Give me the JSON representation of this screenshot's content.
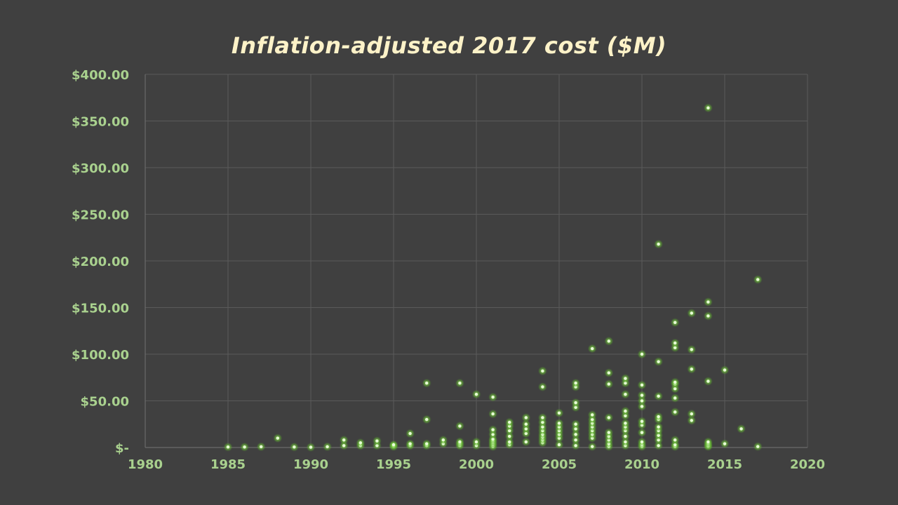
{
  "chart_data": {
    "type": "scatter",
    "title": "Inflation-adjusted 2017 cost ($M)",
    "xlabel": "",
    "ylabel": "",
    "xlim": [
      1980,
      2020
    ],
    "ylim": [
      0,
      400
    ],
    "x_ticks": [
      "1980",
      "1985",
      "1990",
      "1995",
      "2000",
      "2005",
      "2010",
      "2015",
      "2020"
    ],
    "y_ticks": [
      "$-",
      "$50.00",
      "$100.00",
      "$150.00",
      "$200.00",
      "$250.00",
      "$300.00",
      "$350.00",
      "$400.00"
    ],
    "grid": true,
    "marker_color": "#9be05a",
    "points": [
      [
        1985,
        0.5
      ],
      [
        1986,
        0.5
      ],
      [
        1987,
        0.8
      ],
      [
        1988,
        10
      ],
      [
        1989,
        0.5
      ],
      [
        1990,
        0.3
      ],
      [
        1991,
        0.8
      ],
      [
        1992,
        2
      ],
      [
        1992,
        8
      ],
      [
        1993,
        2
      ],
      [
        1993,
        5
      ],
      [
        1994,
        2
      ],
      [
        1994,
        7
      ],
      [
        1995,
        1
      ],
      [
        1995,
        2
      ],
      [
        1995,
        3
      ],
      [
        1996,
        2
      ],
      [
        1996,
        4
      ],
      [
        1996,
        15
      ],
      [
        1997,
        2
      ],
      [
        1997,
        4
      ],
      [
        1997,
        30
      ],
      [
        1997,
        69
      ],
      [
        1998,
        4
      ],
      [
        1998,
        8
      ],
      [
        1999,
        2
      ],
      [
        1999,
        4
      ],
      [
        1999,
        6
      ],
      [
        1999,
        23
      ],
      [
        1999,
        69
      ],
      [
        2000,
        2
      ],
      [
        2000,
        6
      ],
      [
        2000,
        57
      ],
      [
        2001,
        1
      ],
      [
        2001,
        3
      ],
      [
        2001,
        5
      ],
      [
        2001,
        7
      ],
      [
        2001,
        9
      ],
      [
        2001,
        14
      ],
      [
        2001,
        19
      ],
      [
        2001,
        36
      ],
      [
        2001,
        54
      ],
      [
        2002,
        3
      ],
      [
        2002,
        6
      ],
      [
        2002,
        12
      ],
      [
        2002,
        18
      ],
      [
        2002,
        23
      ],
      [
        2002,
        27
      ],
      [
        2003,
        6
      ],
      [
        2003,
        15
      ],
      [
        2003,
        20
      ],
      [
        2003,
        25
      ],
      [
        2003,
        32
      ],
      [
        2004,
        5
      ],
      [
        2004,
        8
      ],
      [
        2004,
        11
      ],
      [
        2004,
        14
      ],
      [
        2004,
        18
      ],
      [
        2004,
        22
      ],
      [
        2004,
        27
      ],
      [
        2004,
        32
      ],
      [
        2004,
        65
      ],
      [
        2004,
        82
      ],
      [
        2005,
        3
      ],
      [
        2005,
        10
      ],
      [
        2005,
        14
      ],
      [
        2005,
        18
      ],
      [
        2005,
        22
      ],
      [
        2005,
        26
      ],
      [
        2005,
        37
      ],
      [
        2006,
        2
      ],
      [
        2006,
        8
      ],
      [
        2006,
        14
      ],
      [
        2006,
        20
      ],
      [
        2006,
        25
      ],
      [
        2006,
        43
      ],
      [
        2006,
        48
      ],
      [
        2006,
        65
      ],
      [
        2006,
        69
      ],
      [
        2007,
        1
      ],
      [
        2007,
        10
      ],
      [
        2007,
        14
      ],
      [
        2007,
        18
      ],
      [
        2007,
        22
      ],
      [
        2007,
        26
      ],
      [
        2007,
        30
      ],
      [
        2007,
        35
      ],
      [
        2007,
        106
      ],
      [
        2008,
        1
      ],
      [
        2008,
        4
      ],
      [
        2008,
        8
      ],
      [
        2008,
        12
      ],
      [
        2008,
        16
      ],
      [
        2008,
        32
      ],
      [
        2008,
        68
      ],
      [
        2008,
        80
      ],
      [
        2008,
        114
      ],
      [
        2009,
        2
      ],
      [
        2009,
        6
      ],
      [
        2009,
        12
      ],
      [
        2009,
        18
      ],
      [
        2009,
        22
      ],
      [
        2009,
        26
      ],
      [
        2009,
        34
      ],
      [
        2009,
        39
      ],
      [
        2009,
        57
      ],
      [
        2009,
        69
      ],
      [
        2009,
        74
      ],
      [
        2010,
        1
      ],
      [
        2010,
        3
      ],
      [
        2010,
        6
      ],
      [
        2010,
        16
      ],
      [
        2010,
        24
      ],
      [
        2010,
        28
      ],
      [
        2010,
        44
      ],
      [
        2010,
        50
      ],
      [
        2010,
        56
      ],
      [
        2010,
        67
      ],
      [
        2010,
        100
      ],
      [
        2011,
        2
      ],
      [
        2011,
        8
      ],
      [
        2011,
        13
      ],
      [
        2011,
        18
      ],
      [
        2011,
        22
      ],
      [
        2011,
        30
      ],
      [
        2011,
        33
      ],
      [
        2011,
        55
      ],
      [
        2011,
        92
      ],
      [
        2011,
        218
      ],
      [
        2012,
        1
      ],
      [
        2012,
        3
      ],
      [
        2012,
        8
      ],
      [
        2012,
        38
      ],
      [
        2012,
        53
      ],
      [
        2012,
        63
      ],
      [
        2012,
        68
      ],
      [
        2012,
        70
      ],
      [
        2012,
        107
      ],
      [
        2012,
        112
      ],
      [
        2012,
        134
      ],
      [
        2013,
        29
      ],
      [
        2013,
        36
      ],
      [
        2013,
        84
      ],
      [
        2013,
        105
      ],
      [
        2013,
        144
      ],
      [
        2014,
        1
      ],
      [
        2014,
        2
      ],
      [
        2014,
        4
      ],
      [
        2014,
        6
      ],
      [
        2014,
        71
      ],
      [
        2014,
        141
      ],
      [
        2014,
        156
      ],
      [
        2014,
        364
      ],
      [
        2015,
        4
      ],
      [
        2015,
        83
      ],
      [
        2016,
        20
      ],
      [
        2017,
        1
      ],
      [
        2017,
        180
      ]
    ]
  }
}
